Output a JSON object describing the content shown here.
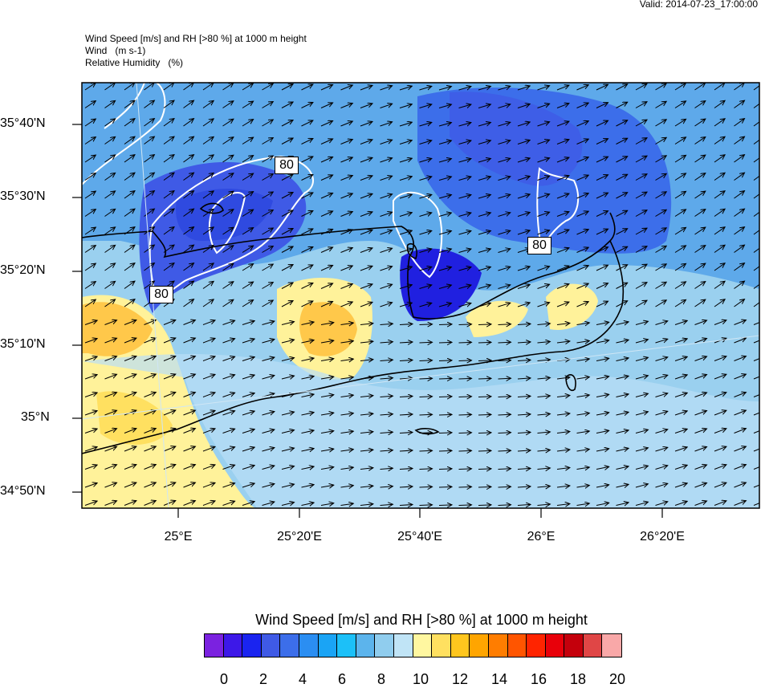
{
  "valid_time": "Valid: 2014-07-23_17:00:00",
  "header": {
    "line1": "Wind Speed [m/s] and RH [>80 %] at 1000 m height",
    "line2": "Wind   (m s-1)",
    "line3": "Relative Humidity   (%)"
  },
  "map": {
    "lat_labels": [
      "35°40'N",
      "35°30'N",
      "35°20'N",
      "35°10'N",
      "35°N",
      "34°50'N"
    ],
    "lon_labels": [
      "25°E",
      "25°20'E",
      "25°40'E",
      "26°E",
      "26°20'E"
    ],
    "contour_labels": [
      "80",
      "80",
      "80"
    ],
    "wind_direction": "west-southwest to east-northeast"
  },
  "colorbar": {
    "title": "Wind Speed [m/s] and RH [>80 %] at 1000 m height",
    "colors": [
      "#7b22e0",
      "#3d18e8",
      "#1a24f0",
      "#3f5ae6",
      "#3c6eea",
      "#2b8ef2",
      "#1aa4f5",
      "#1cc0f8",
      "#5cb4ec",
      "#90cdee",
      "#c0e4f6",
      "#fff7a0",
      "#ffe060",
      "#ffc61e",
      "#ffa500",
      "#ff7d00",
      "#ff5500",
      "#ff2400",
      "#e8000a",
      "#c4000c",
      "#e04646",
      "#f9a8a8"
    ],
    "labels": [
      "0",
      "2",
      "4",
      "6",
      "8",
      "10",
      "12",
      "14",
      "16",
      "18",
      "20"
    ]
  }
}
